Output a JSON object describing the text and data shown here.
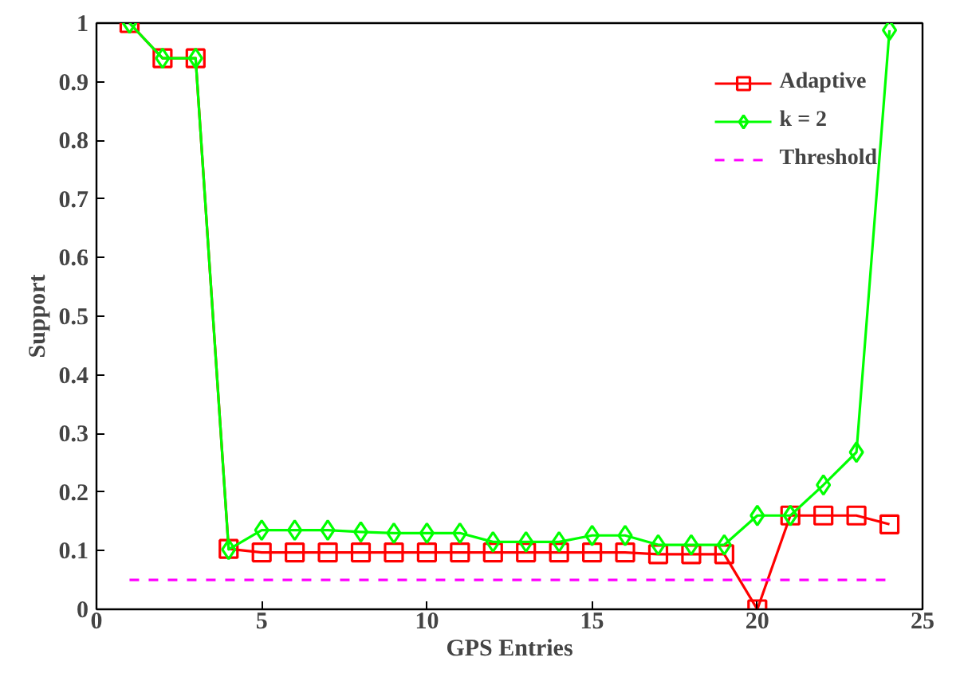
{
  "chart_data": {
    "type": "line",
    "xlabel": "GPS Entries",
    "ylabel": "Support",
    "xlim": [
      0,
      25
    ],
    "xticks": [
      0,
      5,
      10,
      15,
      20,
      25
    ],
    "ylim": [
      0,
      1
    ],
    "yticks": [
      0,
      0.1,
      0.2,
      0.3,
      0.4,
      0.5,
      0.6,
      0.7,
      0.8,
      0.9,
      1
    ],
    "x": [
      1,
      2,
      3,
      4,
      5,
      6,
      7,
      8,
      9,
      10,
      11,
      12,
      13,
      14,
      15,
      16,
      17,
      18,
      19,
      20,
      21,
      22,
      23,
      24
    ],
    "series": [
      {
        "name": "Adaptive",
        "color": "#ff0000",
        "marker": "square",
        "line_style": "solid",
        "values": [
          1,
          0.94,
          0.94,
          0.103,
          0.097,
          0.097,
          0.097,
          0.097,
          0.097,
          0.097,
          0.097,
          0.097,
          0.097,
          0.097,
          0.097,
          0.097,
          0.094,
          0.094,
          0.094,
          0,
          0.16,
          0.16,
          0.16,
          0.145
        ]
      },
      {
        "name": "k = 2",
        "color": "#00ff00",
        "marker": "diamond",
        "line_style": "solid",
        "values": [
          1,
          0.94,
          0.94,
          0.102,
          0.135,
          0.135,
          0.135,
          0.132,
          0.13,
          0.13,
          0.13,
          0.115,
          0.115,
          0.115,
          0.126,
          0.126,
          0.11,
          0.11,
          0.11,
          0.16,
          0.16,
          0.212,
          0.268,
          0.988
        ]
      },
      {
        "name": "Threshold",
        "color": "#ff00ff",
        "marker": "none",
        "line_style": "dashed",
        "x": [
          1,
          24
        ],
        "values": [
          0.05,
          0.05
        ]
      }
    ],
    "grid": false,
    "legend": "top right"
  }
}
